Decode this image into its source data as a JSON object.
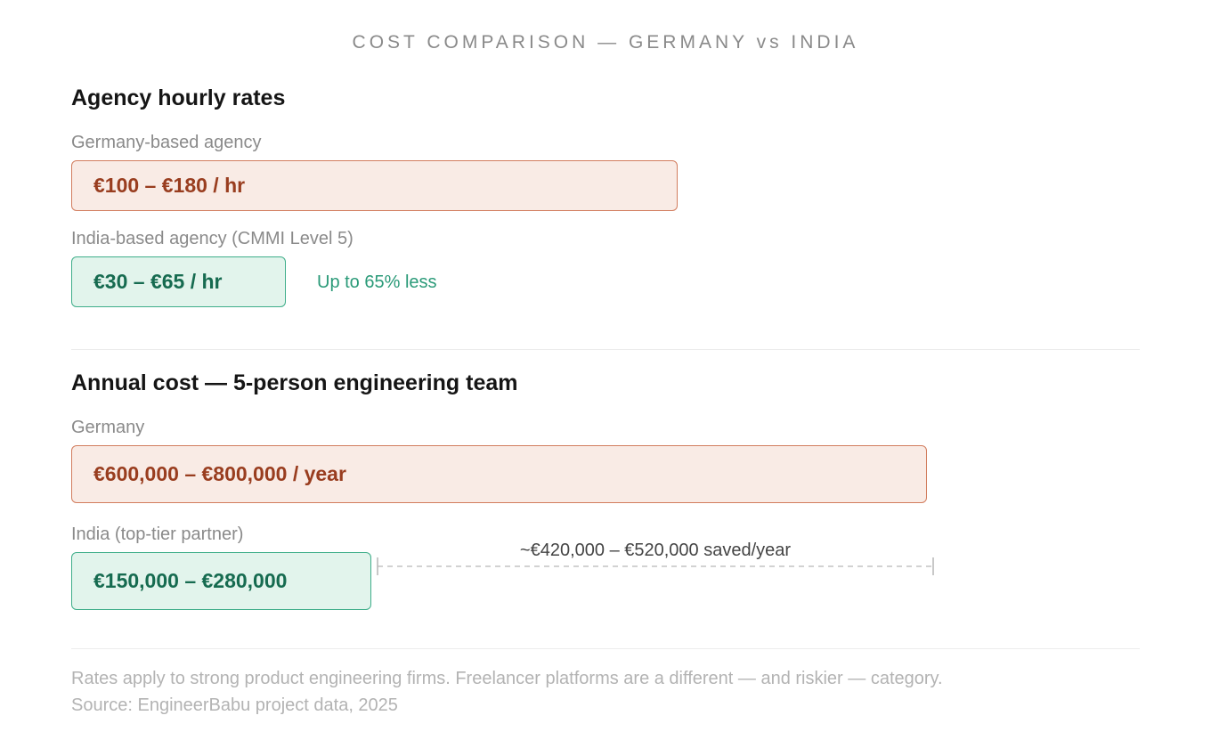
{
  "chart_data": {
    "type": "bar",
    "title": "COST COMPARISON — GERMANY vs INDIA",
    "orientation": "horizontal",
    "sections": [
      {
        "heading": "Agency hourly rates",
        "unit": "€ / hr",
        "rows": [
          {
            "label": "Germany-based agency",
            "range": [
              100,
              180
            ],
            "value_label": "€100 – €180 / hr",
            "color": "#f9ebe5",
            "border": "#d27d5e",
            "text_color": "#993d1f"
          },
          {
            "label": "India-based agency (CMMI Level 5)",
            "range": [
              30,
              65
            ],
            "value_label": "€30 – €65 / hr",
            "color": "#e2f4ec",
            "border": "#3fae8a",
            "text_color": "#166b50",
            "note": "Up to 65% less"
          }
        ]
      },
      {
        "heading": "Annual cost — 5-person engineering team",
        "unit": "€ / year",
        "rows": [
          {
            "label": "Germany",
            "range": [
              600000,
              800000
            ],
            "value_label": "€600,000 – €800,000 / year",
            "color": "#f9ebe5",
            "border": "#d27d5e",
            "text_color": "#993d1f"
          },
          {
            "label": "India (top-tier partner)",
            "range": [
              150000,
              280000
            ],
            "value_label": "€150,000 – €280,000",
            "color": "#e2f4ec",
            "border": "#3fae8a",
            "text_color": "#166b50"
          }
        ],
        "savings_annotation": "~€420,000 – €520,000 saved/year"
      }
    ],
    "footnote": "Rates apply to strong product engineering firms. Freelancer platforms are a different — and riskier — category.",
    "source": "Source: EngineerBabu project data, 2025"
  }
}
